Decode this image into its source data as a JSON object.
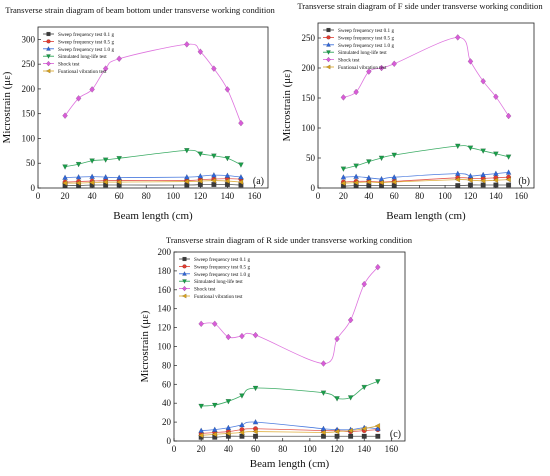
{
  "chart_data": [
    {
      "type": "line",
      "title": "Transverse strain diagram of beam bottom under transverse working condition",
      "panel_label": "(a)",
      "xlabel": "Beam length (cm)",
      "ylabel": "Microstrain (με)",
      "xlim": [
        0,
        170
      ],
      "ylim": [
        0,
        325
      ],
      "xticks": [
        0,
        20,
        40,
        60,
        80,
        100,
        120,
        140,
        160
      ],
      "yticks": [
        0,
        50,
        100,
        150,
        200,
        250,
        300
      ],
      "grid": false,
      "legend_position": "top-left",
      "x": [
        20,
        30,
        40,
        50,
        60,
        110,
        120,
        130,
        140,
        150
      ],
      "series": [
        {
          "name": "Sweep frequency test 0.1 g",
          "color": "#3a3a3a",
          "marker": "square",
          "values": [
            5,
            5,
            6,
            6,
            6,
            6,
            7,
            7,
            7,
            6
          ]
        },
        {
          "name": "Sweep frequency test 0.5 g",
          "color": "#e03c31",
          "marker": "circle",
          "values": [
            12,
            13,
            14,
            15,
            15,
            15,
            17,
            18,
            19,
            18
          ]
        },
        {
          "name": "Sweep frequency test 1.0 g",
          "color": "#2f66d9",
          "marker": "triangle-up",
          "values": [
            21,
            22,
            23,
            22,
            21,
            22,
            24,
            26,
            25,
            22
          ]
        },
        {
          "name": "Simulated long-life test",
          "color": "#1a9e4a",
          "marker": "triangle-down",
          "values": [
            43,
            48,
            55,
            57,
            60,
            76,
            69,
            65,
            60,
            47
          ]
        },
        {
          "name": "Shock test",
          "color": "#d85cd8",
          "marker": "diamond",
          "values": [
            146,
            181,
            199,
            241,
            261,
            290,
            275,
            241,
            199,
            131
          ]
        },
        {
          "name": "Funtional vibration test",
          "color": "#d9a21e",
          "marker": "triangle-left",
          "values": [
            10,
            10,
            11,
            12,
            12,
            13,
            14,
            15,
            14,
            12
          ]
        }
      ]
    },
    {
      "type": "line",
      "title": "Transverse strain diagram of F side under transverse working condition",
      "panel_label": "(b)",
      "xlabel": "Beam length (cm)",
      "ylabel": "Microstrain (με)",
      "xlim": [
        0,
        170
      ],
      "ylim": [
        0,
        275
      ],
      "xticks": [
        0,
        20,
        40,
        60,
        80,
        100,
        120,
        140,
        160
      ],
      "yticks": [
        0,
        50,
        100,
        150,
        200,
        250
      ],
      "grid": false,
      "legend_position": "top-left",
      "x": [
        20,
        30,
        40,
        50,
        60,
        110,
        120,
        130,
        140,
        150
      ],
      "series": [
        {
          "name": "Sweep frequency test 0.1 g",
          "color": "#3a3a3a",
          "marker": "square",
          "values": [
            3,
            4,
            4,
            4,
            4,
            4,
            5,
            5,
            5,
            5
          ]
        },
        {
          "name": "Sweep frequency test 0.5 g",
          "color": "#e03c31",
          "marker": "circle",
          "values": [
            10,
            11,
            11,
            10,
            11,
            17,
            16,
            16,
            17,
            18
          ]
        },
        {
          "name": "Sweep frequency test 1.0 g",
          "color": "#2f66d9",
          "marker": "triangle-up",
          "values": [
            18,
            19,
            17,
            15,
            18,
            24,
            20,
            22,
            24,
            26
          ]
        },
        {
          "name": "Simulated long-life test",
          "color": "#1a9e4a",
          "marker": "triangle-down",
          "values": [
            32,
            37,
            44,
            50,
            55,
            70,
            67,
            62,
            57,
            52
          ]
        },
        {
          "name": "Shock test",
          "color": "#d85cd8",
          "marker": "diamond",
          "values": [
            151,
            160,
            194,
            200,
            207,
            251,
            211,
            178,
            152,
            120
          ]
        },
        {
          "name": "Funtional vibration test",
          "color": "#d9a21e",
          "marker": "triangle-left",
          "values": [
            8,
            9,
            10,
            9,
            10,
            14,
            13,
            12,
            13,
            14
          ]
        }
      ]
    },
    {
      "type": "line",
      "title": "Transverse strain diagram of R side under transverse working condition",
      "panel_label": "(c)",
      "xlabel": "Beam length (cm)",
      "ylabel": "Microstrain (με)",
      "xlim": [
        0,
        170
      ],
      "ylim": [
        0,
        200
      ],
      "xticks": [
        0,
        20,
        40,
        60,
        80,
        100,
        120,
        140,
        160
      ],
      "yticks": [
        0,
        20,
        40,
        60,
        80,
        100,
        120,
        140,
        160,
        180,
        200
      ],
      "grid": false,
      "legend_position": "top-left",
      "x": [
        20,
        30,
        40,
        50,
        60,
        110,
        120,
        130,
        140,
        150
      ],
      "series": [
        {
          "name": "Sweep frequency test 0.1 g",
          "color": "#3a3a3a",
          "marker": "square",
          "values": [
            4,
            4,
            5,
            5,
            5,
            5,
            5,
            5,
            5,
            5
          ]
        },
        {
          "name": "Sweep frequency test 0.5 g",
          "color": "#e03c31",
          "marker": "circle",
          "values": [
            8,
            9,
            10,
            12,
            13,
            11,
            11,
            10,
            11,
            12
          ]
        },
        {
          "name": "Sweep frequency test 1.0 g",
          "color": "#2f66d9",
          "marker": "triangle-up",
          "values": [
            11,
            12,
            14,
            17,
            20,
            13,
            12,
            12,
            14,
            13
          ]
        },
        {
          "name": "Simulated long-life test",
          "color": "#1a9e4a",
          "marker": "triangle-down",
          "values": [
            37,
            38,
            42,
            48,
            56,
            51,
            45,
            46,
            57,
            63
          ]
        },
        {
          "name": "Shock test",
          "color": "#d85cd8",
          "marker": "diamond",
          "values": [
            124,
            124,
            110,
            111,
            112,
            82,
            108,
            128,
            166,
            184
          ]
        },
        {
          "name": "Funtional vibration test",
          "color": "#d9a21e",
          "marker": "triangle-left",
          "values": [
            6,
            7,
            8,
            9,
            10,
            9,
            10,
            11,
            13,
            16
          ]
        }
      ]
    }
  ]
}
